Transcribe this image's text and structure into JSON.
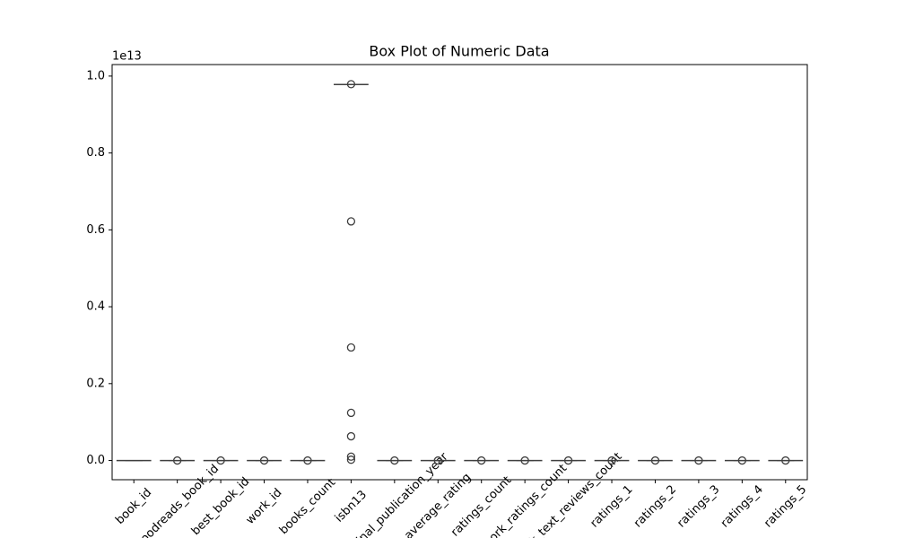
{
  "chart_data": {
    "type": "box",
    "title": "Box Plot of Numeric Data",
    "y_offset_label": "1e13",
    "categories": [
      "book_id",
      "goodreads_book_id",
      "best_book_id",
      "work_id",
      "books_count",
      "isbn13",
      "original_publication_year",
      "average_rating",
      "ratings_count",
      "work_ratings_count",
      "work_text_reviews_count",
      "ratings_1",
      "ratings_2",
      "ratings_3",
      "ratings_4",
      "ratings_5"
    ],
    "color": "#3d6fa8",
    "boxes": [
      {
        "whisker_low": 0,
        "q1": 0,
        "median": 0,
        "q3": 0,
        "whisker_high": 0,
        "outliers": []
      },
      {
        "whisker_low": 0,
        "q1": 0,
        "median": 0,
        "q3": 0,
        "whisker_high": 0,
        "outliers": [
          0
        ]
      },
      {
        "whisker_low": 0,
        "q1": 0,
        "median": 0,
        "q3": 0,
        "whisker_high": 0,
        "outliers": [
          0
        ]
      },
      {
        "whisker_low": 0,
        "q1": 0,
        "median": 0,
        "q3": 0,
        "whisker_high": 0,
        "outliers": [
          0
        ]
      },
      {
        "whisker_low": 0,
        "q1": 0,
        "median": 0,
        "q3": 0,
        "whisker_high": 0,
        "outliers": [
          0
        ]
      },
      {
        "whisker_low": 0.978,
        "q1": 0.978,
        "median": 0.978,
        "q3": 0.978,
        "whisker_high": 0.978,
        "outliers": [
          0.979,
          0.622,
          0.294,
          0.124,
          0.063,
          0.01,
          0.002
        ]
      },
      {
        "whisker_low": 0,
        "q1": 0,
        "median": 0,
        "q3": 0,
        "whisker_high": 0,
        "outliers": [
          0
        ]
      },
      {
        "whisker_low": 0,
        "q1": 0,
        "median": 0,
        "q3": 0,
        "whisker_high": 0,
        "outliers": [
          0
        ]
      },
      {
        "whisker_low": 0,
        "q1": 0,
        "median": 0,
        "q3": 0,
        "whisker_high": 0,
        "outliers": [
          0
        ]
      },
      {
        "whisker_low": 0,
        "q1": 0,
        "median": 0,
        "q3": 0,
        "whisker_high": 0,
        "outliers": [
          0
        ]
      },
      {
        "whisker_low": 0,
        "q1": 0,
        "median": 0,
        "q3": 0,
        "whisker_high": 0,
        "outliers": [
          0
        ]
      },
      {
        "whisker_low": 0,
        "q1": 0,
        "median": 0,
        "q3": 0,
        "whisker_high": 0,
        "outliers": [
          0
        ]
      },
      {
        "whisker_low": 0,
        "q1": 0,
        "median": 0,
        "q3": 0,
        "whisker_high": 0,
        "outliers": [
          0
        ]
      },
      {
        "whisker_low": 0,
        "q1": 0,
        "median": 0,
        "q3": 0,
        "whisker_high": 0,
        "outliers": [
          0
        ]
      },
      {
        "whisker_low": 0,
        "q1": 0,
        "median": 0,
        "q3": 0,
        "whisker_high": 0,
        "outliers": [
          0
        ]
      },
      {
        "whisker_low": 0,
        "q1": 0,
        "median": 0,
        "q3": 0,
        "whisker_high": 0,
        "outliers": [
          0
        ]
      }
    ],
    "ylim": [
      -0.05,
      1.03
    ],
    "yticks": [
      {
        "value": 0,
        "label": "0.0"
      },
      0.2,
      0.4,
      0.6,
      0.8,
      {
        "value": 1,
        "label": "1.0"
      }
    ],
    "grid": false
  }
}
